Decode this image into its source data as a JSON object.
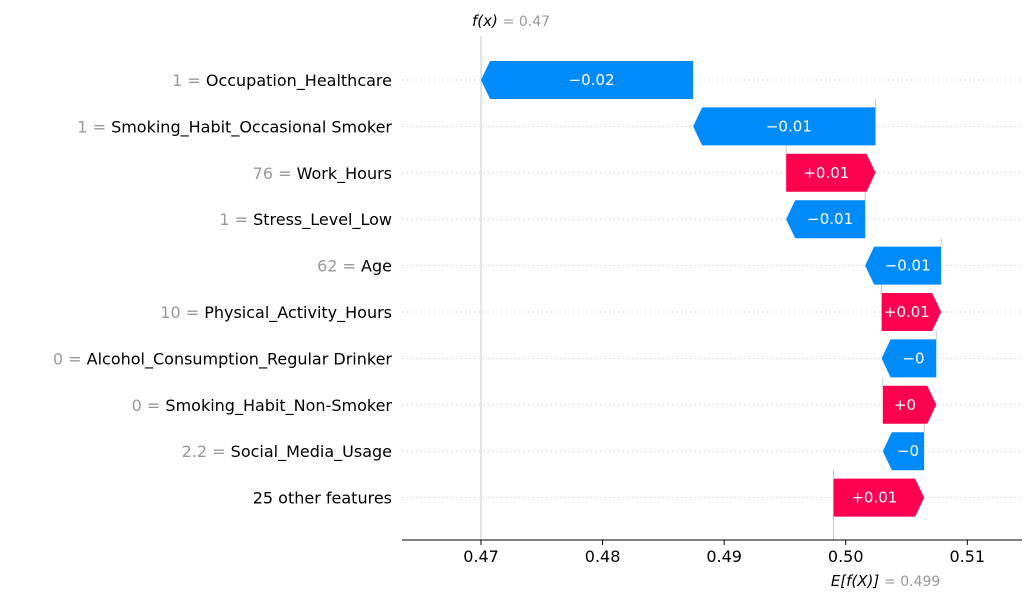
{
  "chart_data": {
    "type": "waterfall",
    "title": "",
    "fx_label": "f(x)",
    "fx_value": "= 0.47",
    "fx": 0.47,
    "ex_label": "E[f(X)]",
    "ex_value": "= 0.499",
    "base_value": 0.499,
    "xlim": [
      0.4635,
      0.5145
    ],
    "xticks": [
      {
        "v": 0.47,
        "label": "0.47"
      },
      {
        "v": 0.48,
        "label": "0.48"
      },
      {
        "v": 0.49,
        "label": "0.49"
      },
      {
        "v": 0.5,
        "label": "0.50"
      },
      {
        "v": 0.51,
        "label": "0.51"
      }
    ],
    "colors": {
      "positive": "#ff0051",
      "negative": "#008bfb",
      "grid": "#cccccc",
      "value_text": "#999999"
    },
    "features": [
      {
        "value": "1 =",
        "name": "Occupation_Healthcare",
        "start": 0.48745,
        "end": 0.47,
        "label": "−0.02"
      },
      {
        "value": "1 =",
        "name": "Smoking_Habit_Occasional Smoker",
        "start": 0.50245,
        "end": 0.48745,
        "label": "−0.01"
      },
      {
        "value": "76 =",
        "name": "Work_Hours",
        "start": 0.4951,
        "end": 0.50245,
        "label": "+0.01"
      },
      {
        "value": "1 =",
        "name": "Stress_Level_Low",
        "start": 0.5016,
        "end": 0.4951,
        "label": "−0.01"
      },
      {
        "value": "62 =",
        "name": "Age",
        "start": 0.50785,
        "end": 0.5016,
        "label": "−0.01"
      },
      {
        "value": "10 =",
        "name": "Physical_Activity_Hours",
        "start": 0.50295,
        "end": 0.50785,
        "label": "+0.01"
      },
      {
        "value": "0 =",
        "name": "Alcohol_Consumption_Regular Drinker",
        "start": 0.50745,
        "end": 0.50295,
        "label": "−0"
      },
      {
        "value": "0 =",
        "name": "Smoking_Habit_Non-Smoker",
        "start": 0.50305,
        "end": 0.50745,
        "label": "+0"
      },
      {
        "value": "2.2 =",
        "name": "Social_Media_Usage",
        "start": 0.50645,
        "end": 0.50305,
        "label": "−0"
      },
      {
        "value": "",
        "name": "25 other features",
        "start": 0.499,
        "end": 0.50645,
        "label": "+0.01"
      }
    ]
  }
}
